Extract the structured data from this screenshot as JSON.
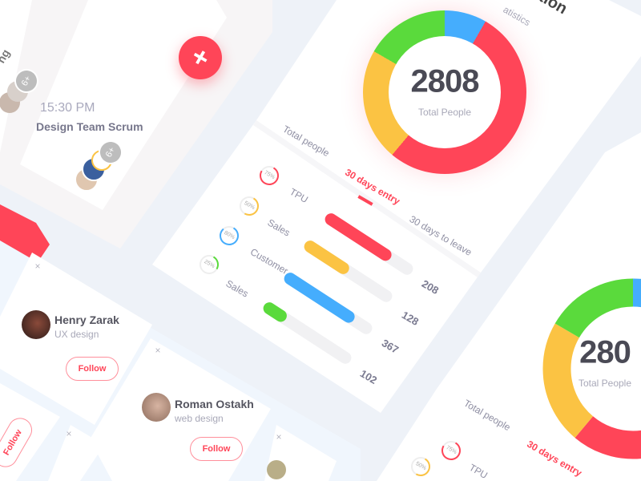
{
  "colors": {
    "accent": "#ff4558",
    "green": "#5ada3c",
    "blue": "#45adfd",
    "red": "#ff4558",
    "yellow": "#fbc343",
    "track": "#f1f1f3"
  },
  "header": {
    "title_partial": "tion",
    "subtitle_partial": "atistics"
  },
  "donut": {
    "total": "2808",
    "label": "Total People"
  },
  "donut2": {
    "total": "280",
    "label": "Total People"
  },
  "tabs": [
    {
      "label": "Total people",
      "active": false
    },
    {
      "label": "30 days entry",
      "active": true
    },
    {
      "label": "30 days to leave",
      "active": false
    }
  ],
  "stats": [
    {
      "label": "TPU",
      "percent": 75,
      "percent_label": "75%",
      "value": "208",
      "color": "#ff4558"
    },
    {
      "label": "Sales",
      "percent": 50,
      "percent_label": "50%",
      "value": "128",
      "color": "#fbc343"
    },
    {
      "label": "Customer",
      "percent": 80,
      "percent_label": "80%",
      "value": "367",
      "color": "#45adfd"
    },
    {
      "label": "Sales",
      "percent": 25,
      "percent_label": "25%",
      "value": "102",
      "color": "#5ada3c"
    }
  ],
  "card2": {
    "tab1": "Total people",
    "tab2": "30 days entry",
    "row_label": "TPU",
    "pct1": "75%",
    "pct2": "50%"
  },
  "schedule": {
    "partial_title": "ng",
    "badge1": "6+",
    "time": "15:30 PM",
    "title": "Design Team Scrum",
    "badge2": "6+",
    "fab_icon": "plus-icon",
    "fab": "+"
  },
  "people": [
    {
      "name": "Henry Zarak",
      "role": "UX design",
      "follow": "Follow"
    },
    {
      "name": "Roman Ostakh",
      "role": "web design",
      "follow": "Follow"
    }
  ],
  "follow_partial": "Follow",
  "close": "×"
}
